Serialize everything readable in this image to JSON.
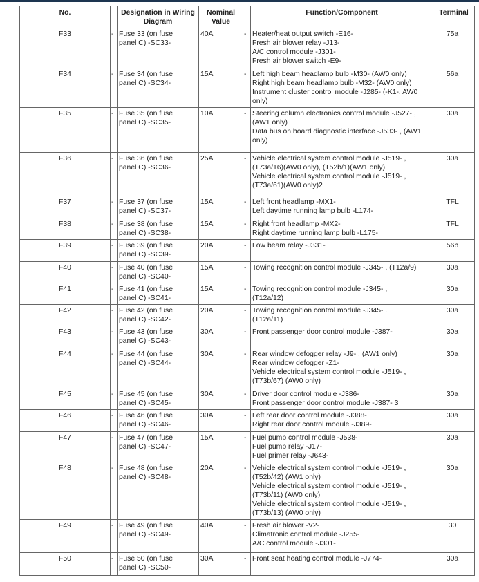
{
  "header": {
    "no": "No.",
    "designation": "Designation in Wiring Diagram",
    "nominal": "Nominal Value",
    "function": "Function/Component",
    "terminal": "Terminal"
  },
  "rows": [
    {
      "no": "F33",
      "designation": [
        "Fuse 33 (on fuse",
        "panel C) -SC33-"
      ],
      "nominal": "40A",
      "function": [
        "Heater/heat output switch -E16-",
        "Fresh air blower relay -J13-",
        "A/C control module -J301-",
        "Fresh air blower switch -E9-"
      ],
      "terminal": "75a"
    },
    {
      "no": "F34",
      "designation": [
        "Fuse 34 (on fuse",
        "panel C) -SC34-"
      ],
      "nominal": "15A",
      "function": [
        "Left high beam headlamp bulb -M30- (AW0 only)",
        "Right high beam headlamp bulb -M32- (AW0 only)",
        "Instrument cluster control module -J285- (-K1-, AW0",
        "only)"
      ],
      "terminal": "56a"
    },
    {
      "no": "F35",
      "designation": [
        "Fuse 35 (on fuse",
        "panel C) -SC35-"
      ],
      "nominal": "10A",
      "function": [
        "Steering column electronics control module -J527- ,",
        "(AW1 only)",
        "Data bus on board diagnostic interface -J533- , (AW1",
        "only)"
      ],
      "terminal": "30a"
    },
    {
      "no": "F36",
      "designation": [
        "Fuse 36 (on fuse",
        "panel C) -SC36-"
      ],
      "nominal": "25A",
      "function": [
        "Vehicle electrical system control module -J519- ,",
        "(T73a/16)(AW0 only), (T52b/1)(AW1 only)",
        "Vehicle electrical system control module -J519- ,",
        "(T73a/61)(AW0 only)2"
      ],
      "terminal": "30a"
    },
    {
      "no": "F37",
      "designation": [
        "Fuse 37 (on fuse",
        "panel C) -SC37-"
      ],
      "nominal": "15A",
      "function": [
        "Left front headlamp -MX1-",
        "Left daytime running lamp bulb -L174-"
      ],
      "terminal": "TFL"
    },
    {
      "no": "F38",
      "designation": [
        "Fuse 38 (on fuse",
        "panel C) -SC38-"
      ],
      "nominal": "15A",
      "function": [
        "Right front headlamp -MX2-",
        "Right daytime running lamp bulb -L175-"
      ],
      "terminal": "TFL"
    },
    {
      "no": "F39",
      "designation": [
        "Fuse 39 (on fuse",
        "panel C) -SC39-"
      ],
      "nominal": "20A",
      "function": [
        "Low beam relay -J331-"
      ],
      "terminal": "56b"
    },
    {
      "no": "F40",
      "designation": [
        "Fuse 40 (on fuse",
        "panel C) -SC40-"
      ],
      "nominal": "15A",
      "function": [
        "Towing recognition control module -J345- , (T12a/9)"
      ],
      "terminal": "30a"
    },
    {
      "no": "F41",
      "designation": [
        "Fuse 41 (on fuse",
        "panel C) -SC41-"
      ],
      "nominal": "15A",
      "function": [
        "Towing recognition control module -J345- ,",
        "(T12a/12)"
      ],
      "terminal": "30a"
    },
    {
      "no": "F42",
      "designation": [
        "Fuse 42 (on fuse",
        "panel C) -SC42-"
      ],
      "nominal": "20A",
      "function": [
        "Towing recognition control module -J345- .",
        "(T12a/11)"
      ],
      "terminal": "30a"
    },
    {
      "no": "F43",
      "designation": [
        "Fuse 43 (on fuse",
        "panel C) -SC43-"
      ],
      "nominal": "30A",
      "function": [
        "Front passenger door control module -J387-"
      ],
      "terminal": "30a"
    },
    {
      "no": "F44",
      "designation": [
        "Fuse 44 (on fuse",
        "panel C) -SC44-"
      ],
      "nominal": "30A",
      "function": [
        "Rear window defogger relay -J9- , (AW1 only)",
        "Rear window defogger -Z1-",
        "Vehicle electrical system control module -J519- ,",
        "(T73b/67) (AW0 only)"
      ],
      "terminal": "30a"
    },
    {
      "no": "F45",
      "designation": [
        "Fuse 45 (on fuse",
        "panel C) -SC45-"
      ],
      "nominal": "30A",
      "function": [
        "Driver door control module -J386-",
        "Front passenger door control module -J387- 3"
      ],
      "terminal": "30a"
    },
    {
      "no": "F46",
      "designation": [
        "Fuse 46 (on fuse",
        "panel C) -SC46-"
      ],
      "nominal": "30A",
      "function": [
        "Left rear door control module -J388-",
        "Right rear door control module -J389-"
      ],
      "terminal": "30a"
    },
    {
      "no": "F47",
      "designation": [
        "Fuse 47 (on fuse",
        "panel C) -SC47-"
      ],
      "nominal": "15A",
      "function": [
        "Fuel pump control module -J538-",
        "Fuel pump relay -J17-",
        "Fuel primer relay -J643-"
      ],
      "terminal": "30a"
    },
    {
      "no": "F48",
      "designation": [
        "Fuse 48 (on fuse",
        "panel C) -SC48-"
      ],
      "nominal": "20A",
      "function": [
        "Vehicle electrical system control module -J519- ,",
        "(T52b/42) (AW1 only)",
        "Vehicle electrical system control module -J519- ,",
        "(T73b/11) (AW0 only)",
        "Vehicle electrical system control module -J519- ,",
        "(T73b/13) (AW0 only)"
      ],
      "terminal": "30a"
    },
    {
      "no": "F49",
      "designation": [
        "Fuse 49 (on fuse",
        "panel C) -SC49-"
      ],
      "nominal": "40A",
      "function": [
        "Fresh air blower -V2-",
        "Climatronic control module -J255-",
        "A/C control module -J301-"
      ],
      "terminal": "30"
    },
    {
      "no": "F50",
      "designation": [
        "Fuse 50 (on fuse",
        "panel C) -SC50-"
      ],
      "nominal": "30A",
      "function": [
        "Front seat heating control module -J774-"
      ],
      "terminal": "30a"
    }
  ],
  "dash": "-",
  "colors": {
    "top_bar": "#1d3550",
    "border": "#333333"
  }
}
